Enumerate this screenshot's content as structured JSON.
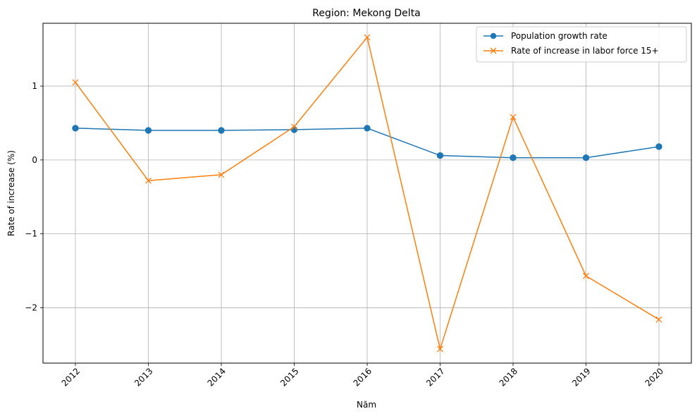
{
  "chart_data": {
    "type": "line",
    "title": "Region: Mekong Delta",
    "xlabel": "Năm",
    "ylabel": "Rate of increase (%)",
    "x": [
      "2012",
      "2013",
      "2014",
      "2015",
      "2016",
      "2017",
      "2018",
      "2019",
      "2020"
    ],
    "ylim": [
      -2.75,
      1.85
    ],
    "yticks": [
      -2,
      -1,
      0,
      1
    ],
    "ytick_labels": [
      "−2",
      "−1",
      "0",
      "1"
    ],
    "grid": true,
    "legend_position": "top-right",
    "series": [
      {
        "name": "Population growth rate",
        "color": "#1f77b4",
        "marker": "circle",
        "values": [
          0.43,
          0.4,
          0.4,
          0.41,
          0.43,
          0.06,
          0.03,
          0.03,
          0.18
        ]
      },
      {
        "name": "Rate of increase in labor force 15+",
        "color": "#ff7f0e",
        "marker": "x",
        "values": [
          1.05,
          -0.28,
          -0.2,
          0.45,
          1.66,
          -2.56,
          0.58,
          -1.57,
          -2.16
        ]
      }
    ]
  }
}
